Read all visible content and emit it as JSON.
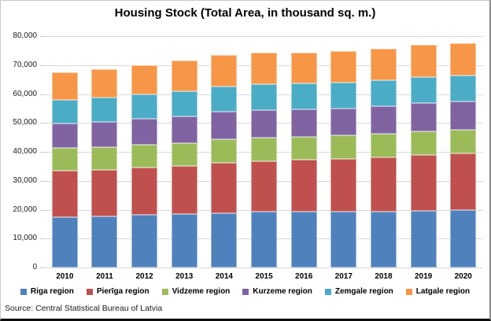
{
  "title": "Housing Stock (Total Area, in thousand sq. m.)",
  "source": "Source: Central Statistical Bureau of Latvia",
  "chart_data": {
    "type": "bar",
    "stacked": true,
    "title": "Housing Stock (Total Area, in thousand sq. m.)",
    "categories": [
      "2010",
      "2011",
      "2012",
      "2013",
      "2014",
      "2015",
      "2016",
      "2017",
      "2018",
      "2019",
      "2020"
    ],
    "series": [
      {
        "name": "Riga region",
        "color": "#4F81BD",
        "values": [
          17500,
          17700,
          18200,
          18600,
          18900,
          19200,
          19300,
          19400,
          19400,
          19600,
          19800
        ]
      },
      {
        "name": "Pierīga region",
        "color": "#C0504D",
        "values": [
          15900,
          16100,
          16300,
          16500,
          17300,
          17600,
          17900,
          18100,
          18700,
          19300,
          19600
        ]
      },
      {
        "name": "Vidzeme region",
        "color": "#9BBB59",
        "values": [
          7900,
          7900,
          8000,
          8000,
          8100,
          8100,
          8100,
          8100,
          8200,
          8300,
          8300
        ]
      },
      {
        "name": "Kurzeme region",
        "color": "#8064A2",
        "values": [
          8500,
          8600,
          8900,
          9200,
          9500,
          9500,
          9400,
          9400,
          9500,
          9600,
          9600
        ]
      },
      {
        "name": "Zemgale region",
        "color": "#4BACC6",
        "values": [
          8300,
          8500,
          8500,
          8700,
          8800,
          8900,
          8900,
          8900,
          8900,
          9000,
          9000
        ]
      },
      {
        "name": "Latgale region",
        "color": "#F79646",
        "values": [
          9500,
          9700,
          10000,
          10500,
          10800,
          10900,
          10800,
          10900,
          11000,
          11100,
          11300
        ]
      }
    ],
    "xlabel": "",
    "ylabel": "",
    "ylim": [
      0,
      80000
    ],
    "ytick_step": 10000,
    "ytick_labels": [
      "0",
      "10,000",
      "20,000",
      "30,000",
      "40,000",
      "50,000",
      "60,000",
      "70,000",
      "80,000"
    ],
    "grid": true,
    "legend_position": "bottom",
    "gridline_color": "#d9d9d9"
  }
}
